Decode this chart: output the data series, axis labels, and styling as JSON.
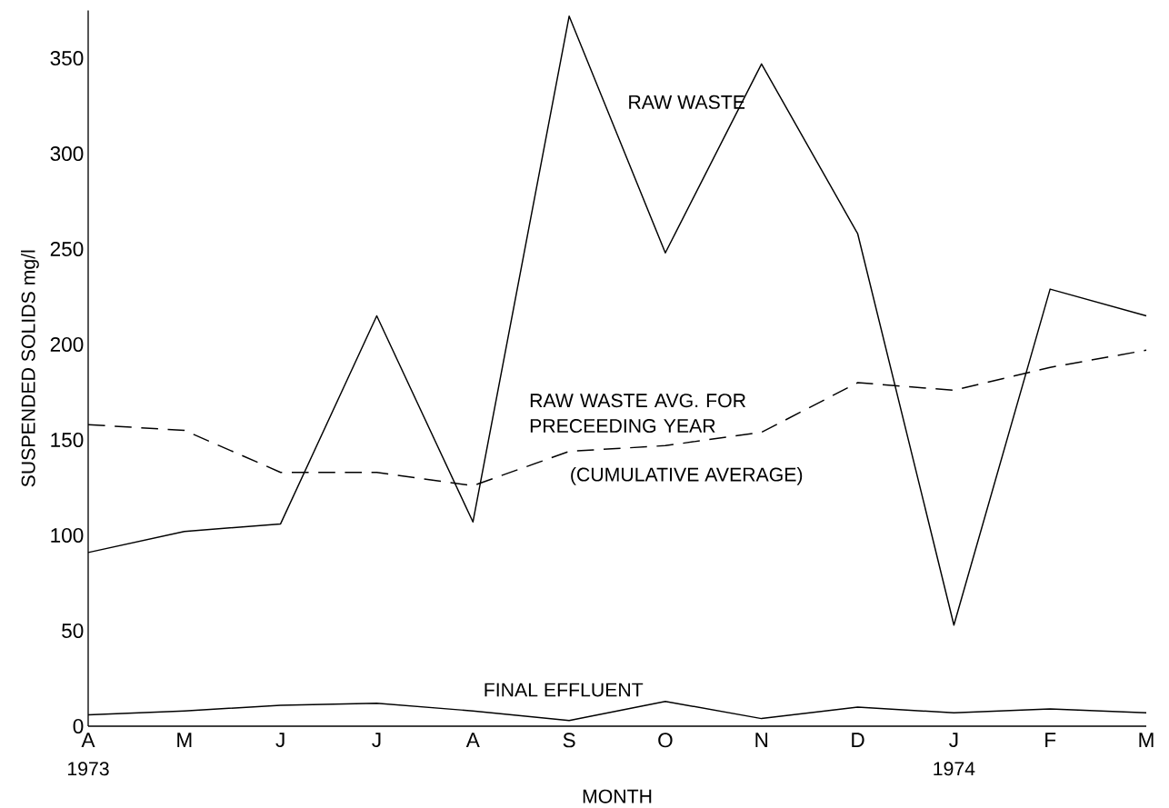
{
  "chart_data": {
    "type": "line",
    "xlabel": "MONTH",
    "ylabel": "SUSPENDED SOLIDS mg/l",
    "categories": [
      "A",
      "M",
      "J",
      "J",
      "A",
      "S",
      "O",
      "N",
      "D",
      "J",
      "F",
      "M"
    ],
    "series": [
      {
        "name": "RAW WASTE",
        "color": "#000000",
        "line_style": "solid",
        "values": [
          91,
          102,
          106,
          215,
          107,
          372,
          248,
          347,
          258,
          53,
          229,
          215
        ]
      },
      {
        "name": "RAW WASTE AVG. FOR PRECEEDING YEAR",
        "color": "#000000",
        "line_style": "dashed",
        "values": [
          158,
          155,
          133,
          133,
          126,
          144,
          147,
          154,
          180,
          176,
          188,
          197
        ]
      },
      {
        "name": "FINAL EFFLUENT",
        "color": "#000000",
        "line_style": "solid",
        "values": [
          6,
          8,
          11,
          12,
          8,
          3,
          13,
          4,
          10,
          7,
          9,
          7
        ]
      }
    ],
    "annotations": [
      "(CUMULATIVE AVERAGE)",
      "1973",
      "1974"
    ],
    "ylim": [
      0,
      375
    ],
    "yticks": [
      0,
      50,
      100,
      150,
      200,
      250,
      300,
      350
    ],
    "grid": false,
    "marker": "none"
  }
}
